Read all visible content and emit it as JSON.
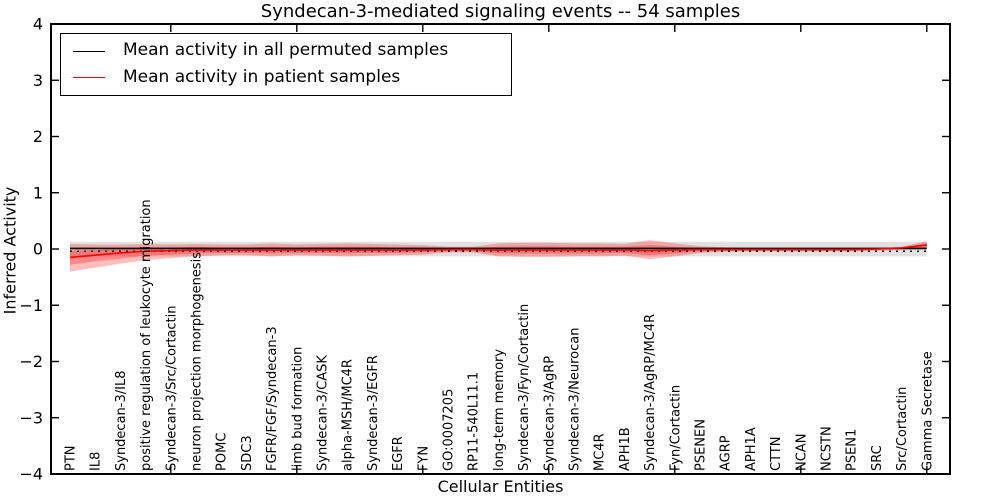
{
  "chart_data": {
    "type": "line",
    "title": "Syndecan-3-mediated signaling events -- 54 samples",
    "xlabel": "Cellular Entities",
    "ylabel": "Inferred Activity",
    "ylim": [
      -4,
      4
    ],
    "grid": false,
    "legend_position": "upper left",
    "yticks": [
      {
        "v": 4,
        "label": "4"
      },
      {
        "v": 3,
        "label": "3"
      },
      {
        "v": 2,
        "label": "2"
      },
      {
        "v": 1,
        "label": "1"
      },
      {
        "v": 0,
        "label": "0"
      },
      {
        "v": -1,
        "label": "−1"
      },
      {
        "v": -2,
        "label": "−2"
      },
      {
        "v": -3,
        "label": "−3"
      },
      {
        "v": -4,
        "label": "−4"
      }
    ],
    "x_major_tick_indices": [
      4,
      9,
      14,
      19,
      24,
      29,
      34
    ],
    "categories": [
      "PTN",
      "IL8",
      "Syndecan-3/IL8",
      "positive regulation of leukocyte migration",
      "Syndecan-3/Src/Cortactin",
      "neuron projection morphogenesis",
      "POMC",
      "SDC3",
      "FGFR/FGF/Syndecan-3",
      "limb bud formation",
      "Syndecan-3/CASK",
      "alpha-MSH/MC4R",
      "Syndecan-3/EGFR",
      "EGFR",
      "FYN",
      "GO:0007205",
      "RP11-540L11.1",
      "long-term memory",
      "Syndecan-3/Fyn/Cortactin",
      "Syndecan-3/AgRP",
      "Syndecan-3/Neurocan",
      "MC4R",
      "APH1B",
      "Syndecan-3/AgRP/MC4R",
      "Fyn/Cortactin",
      "PSENEN",
      "AGRP",
      "APH1A",
      "CTTN",
      "NCAN",
      "NCSTN",
      "PSEN1",
      "SRC",
      "Src/Cortactin",
      "Gamma Secretase"
    ],
    "legend": [
      {
        "label": "Mean activity in all permuted samples",
        "color": "#000000"
      },
      {
        "label": "Mean activity in patient samples",
        "color": "#ff0000"
      }
    ],
    "series": [
      {
        "key": "permuted-mean-line",
        "name": "Mean activity in all permuted samples",
        "color": "#000000",
        "line": "solid",
        "width": 1.6,
        "values": 0.01
      },
      {
        "key": "zero-reference-dotted-line",
        "name": "zero reference (dotted)",
        "color": "#000000",
        "line": "dotted",
        "width": 1.5,
        "values": -0.04
      },
      {
        "key": "patient-mean-line",
        "name": "Mean activity in patient samples",
        "color": "#ff0000",
        "line": "solid",
        "width": 1.6,
        "values": [
          -0.15,
          -0.11,
          -0.07,
          -0.04,
          -0.03,
          -0.02,
          -0.02,
          -0.02,
          -0.02,
          -0.02,
          -0.02,
          -0.02,
          -0.02,
          -0.02,
          -0.02,
          -0.01,
          -0.01,
          -0.02,
          -0.02,
          -0.02,
          -0.02,
          -0.02,
          -0.02,
          -0.03,
          -0.02,
          -0.01,
          -0.01,
          -0.01,
          -0.01,
          -0.01,
          -0.01,
          -0.01,
          0.0,
          0.02,
          0.07
        ]
      }
    ],
    "bands": [
      {
        "key": "permuted-activity-band",
        "color": "#bdbdbd",
        "opacity": 0.45,
        "upper": 0.13,
        "lower": -0.13
      },
      {
        "key": "patient-activity-band-outer",
        "color": "#ff0000",
        "opacity": 0.26,
        "upper": [
          0.09,
          0.08,
          0.08,
          0.09,
          0.08,
          0.09,
          0.08,
          0.08,
          0.1,
          0.08,
          0.09,
          0.1,
          0.09,
          0.08,
          0.07,
          0.04,
          0.04,
          0.1,
          0.11,
          0.11,
          0.1,
          0.1,
          0.09,
          0.16,
          0.1,
          0.05,
          0.03,
          0.02,
          0.02,
          0.02,
          0.02,
          0.02,
          0.02,
          0.04,
          0.14
        ],
        "lower": [
          -0.4,
          -0.33,
          -0.26,
          -0.2,
          -0.16,
          -0.13,
          -0.11,
          -0.11,
          -0.13,
          -0.11,
          -0.12,
          -0.13,
          -0.12,
          -0.11,
          -0.1,
          -0.06,
          -0.06,
          -0.13,
          -0.14,
          -0.14,
          -0.13,
          -0.13,
          -0.12,
          -0.18,
          -0.13,
          -0.07,
          -0.05,
          -0.04,
          -0.04,
          -0.04,
          -0.04,
          -0.04,
          -0.03,
          -0.01,
          0.0
        ]
      },
      {
        "key": "patient-activity-band-inner",
        "color": "#ff0000",
        "opacity": 0.28,
        "upper": [
          -0.03,
          -0.02,
          0.01,
          0.03,
          0.03,
          0.04,
          0.03,
          0.03,
          0.04,
          0.03,
          0.04,
          0.04,
          0.04,
          0.03,
          0.03,
          0.02,
          0.02,
          0.04,
          0.05,
          0.05,
          0.04,
          0.04,
          0.04,
          0.07,
          0.04,
          0.02,
          0.01,
          0.01,
          0.01,
          0.01,
          0.01,
          0.01,
          0.01,
          0.03,
          0.11
        ],
        "lower": [
          -0.28,
          -0.22,
          -0.17,
          -0.12,
          -0.1,
          -0.08,
          -0.07,
          -0.07,
          -0.08,
          -0.07,
          -0.07,
          -0.08,
          -0.07,
          -0.07,
          -0.06,
          -0.04,
          -0.04,
          -0.08,
          -0.08,
          -0.08,
          -0.08,
          -0.08,
          -0.07,
          -0.11,
          -0.08,
          -0.04,
          -0.03,
          -0.03,
          -0.03,
          -0.03,
          -0.03,
          -0.03,
          -0.02,
          0.0,
          0.03
        ]
      }
    ]
  }
}
